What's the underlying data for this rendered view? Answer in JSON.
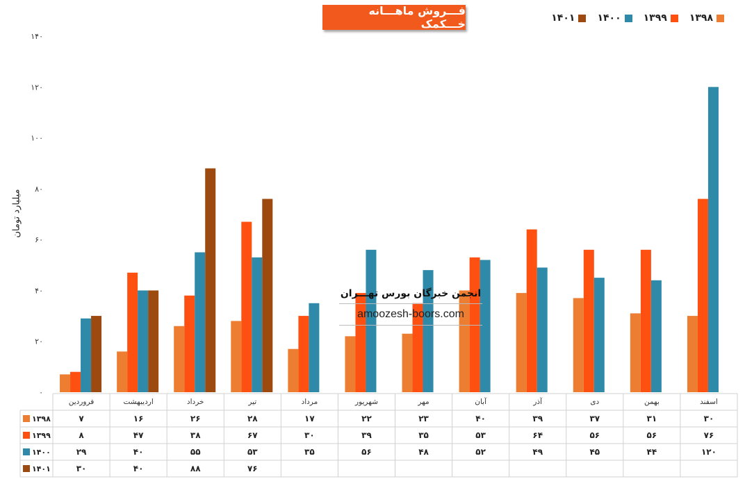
{
  "chart_data": {
    "type": "bar",
    "title": "فـــروش ماهـــانه خـــکمک",
    "ylabel": "میلیارد تومان",
    "ylim": [
      0,
      140
    ],
    "yticks": [
      "۰",
      "۲۰",
      "۴۰",
      "۶۰",
      "۸۰",
      "۱۰۰",
      "۱۲۰",
      "۱۴۰"
    ],
    "categories": [
      "فروردین",
      "اردیبهشت",
      "خرداد",
      "تیر",
      "مرداد",
      "شهریور",
      "مهر",
      "آبان",
      "آذر",
      "دی",
      "بهمن",
      "اسفند"
    ],
    "series": [
      {
        "name": "۱۳۹۸",
        "color": "#ed7d31",
        "values": [
          7,
          16,
          26,
          28,
          17,
          22,
          23,
          40,
          39,
          37,
          31,
          30
        ],
        "labels": [
          "۷",
          "۱۶",
          "۲۶",
          "۲۸",
          "۱۷",
          "۲۲",
          "۲۳",
          "۴۰",
          "۳۹",
          "۳۷",
          "۳۱",
          "۳۰"
        ]
      },
      {
        "name": "۱۳۹۹",
        "color": "#fe5010",
        "values": [
          8,
          47,
          38,
          67,
          30,
          39,
          35,
          53,
          64,
          56,
          56,
          76
        ],
        "labels": [
          "۸",
          "۴۷",
          "۳۸",
          "۶۷",
          "۳۰",
          "۳۹",
          "۳۵",
          "۵۳",
          "۶۴",
          "۵۶",
          "۵۶",
          "۷۶"
        ]
      },
      {
        "name": "۱۴۰۰",
        "color": "#2e8aa8",
        "values": [
          29,
          40,
          55,
          53,
          35,
          56,
          48,
          52,
          49,
          45,
          44,
          120
        ],
        "labels": [
          "۲۹",
          "۴۰",
          "۵۵",
          "۵۳",
          "۳۵",
          "۵۶",
          "۴۸",
          "۵۲",
          "۴۹",
          "۴۵",
          "۴۴",
          "۱۲۰"
        ]
      },
      {
        "name": "۱۴۰۱",
        "color": "#9c4a10",
        "values": [
          30,
          40,
          88,
          76,
          null,
          null,
          null,
          null,
          null,
          null,
          null,
          null
        ],
        "labels": [
          "۳۰",
          "۴۰",
          "۸۸",
          "۷۶",
          "",
          "",
          "",
          "",
          "",
          "",
          "",
          ""
        ]
      }
    ],
    "legend_position": "top-right",
    "grid": false,
    "data_table": true
  },
  "watermark": {
    "title": "انجمن خبرگان بورس تهـــران",
    "url": "amoozesh-boors.com"
  }
}
